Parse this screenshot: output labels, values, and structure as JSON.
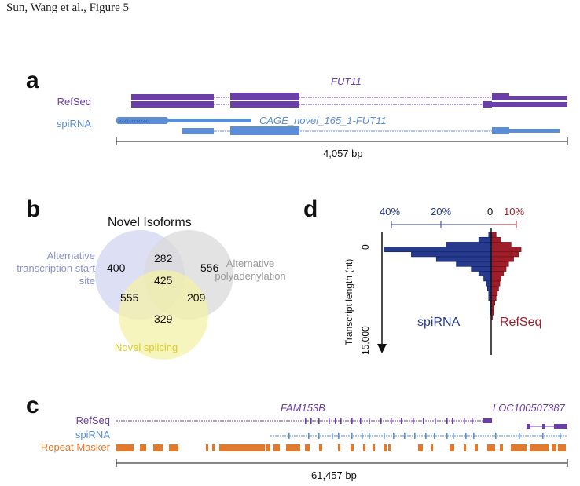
{
  "header": {
    "title": "Sun, Wang et al., Figure 5"
  },
  "colors": {
    "refseq": "#6A3FA8",
    "spirna": "#5B8ED6",
    "repeat": "#E07A2E",
    "venn_a": "#D9DDF3",
    "venn_b": "#DADADA",
    "venn_c": "#F4F2A8",
    "spirna_bars": "#263A8E",
    "refseq_bars": "#A01E2A"
  },
  "panel_a": {
    "label": "a",
    "tracks": {
      "refseq": "RefSeq",
      "spirna": "spiRNA"
    },
    "gene_refseq": "FUT11",
    "gene_spirna": "CAGE_novel_165_1-FUT11",
    "scale": "4,057 bp"
  },
  "panel_b": {
    "label": "b",
    "title": "Novel Isoforms",
    "sets": {
      "a": "Alternative transcription start site",
      "b": "Alternative polyadenylation",
      "c": "Novel splicing"
    },
    "counts": {
      "a_only": "400",
      "ab": "282",
      "b_only": "556",
      "abc": "425",
      "ac": "555",
      "bc": "209",
      "c_only": "329"
    }
  },
  "panel_c": {
    "label": "c",
    "tracks": {
      "refseq": "RefSeq",
      "spirna": "spiRNA",
      "repeat": "Repeat Masker"
    },
    "gene_1": "FAM153B",
    "gene_2": "LOC100507387",
    "scale": "61,457 bp"
  },
  "panel_d": {
    "label": "d",
    "x_ticks": [
      "40%",
      "20%",
      "0",
      "10%"
    ],
    "y_label": "Transcript length (nt)",
    "y_ticks": [
      "0",
      "15,000"
    ],
    "left_series": "spiRNA",
    "right_series": "RefSeq"
  },
  "chart_data": {
    "type": "bar",
    "orientation": "horizontal",
    "xlabel": "",
    "ylabel": "Transcript length (nt)",
    "ylim": [
      0,
      15000
    ],
    "series": [
      {
        "name": "spiRNA",
        "direction": "left",
        "unit": "%",
        "values": [
          1,
          5,
          18,
          43,
          32,
          22,
          14,
          8,
          5,
          3,
          2,
          1.5,
          1,
          1,
          0.5,
          0.5,
          0.5
        ]
      },
      {
        "name": "RefSeq",
        "direction": "right",
        "unit": "%",
        "values": [
          2,
          4,
          8,
          12,
          11,
          9,
          7,
          6,
          5,
          4,
          3.5,
          3,
          2.5,
          2,
          1.5,
          1,
          1,
          0.5
        ]
      }
    ]
  }
}
